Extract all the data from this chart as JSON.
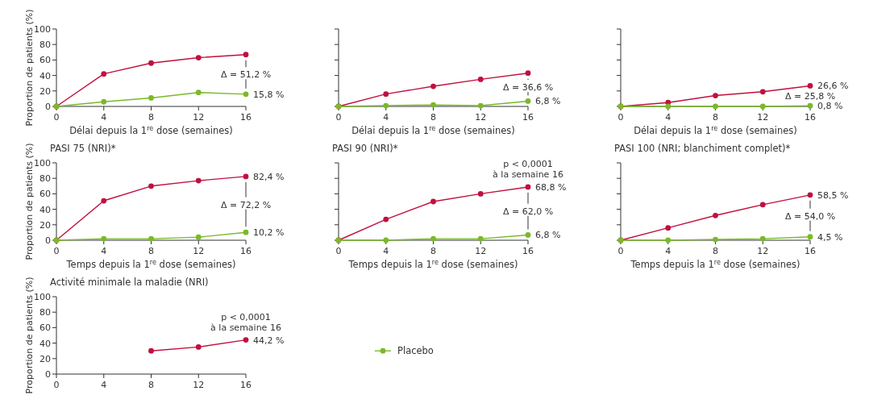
{
  "chart_data": [
    {
      "type": "line",
      "xlabel": "Délai depuis la 1$^{re}$ dose (semaines)",
      "ylabel": "Proportion de patients (%)",
      "x": [
        0,
        4,
        8,
        12,
        16
      ],
      "xlim": [
        0,
        16
      ],
      "xticks": [
        0,
        4,
        8,
        12,
        16
      ],
      "ylim": [
        0,
        100
      ],
      "yticks": [
        0,
        20,
        40,
        60,
        80,
        100
      ],
      "marker": "circle",
      "series": [
        {
          "color": "#c0103f",
          "values": [
            0,
            42,
            56,
            63,
            67.0
          ],
          "value_labels": [
            null,
            null,
            null,
            null,
            null
          ]
        },
        {
          "color": "#7ab929",
          "values": [
            0,
            6,
            11,
            18,
            15.8
          ],
          "value_labels": [
            null,
            null,
            null,
            null,
            "15,8 %"
          ]
        }
      ],
      "annotations": [
        "Δ = 51,2 %"
      ]
    },
    {
      "type": "line",
      "xlabel": "Délai depuis la 1$^{re}$ dose (semaines)",
      "x": [
        0,
        4,
        8,
        12,
        16
      ],
      "xlim": [
        0,
        16
      ],
      "xticks": [
        0,
        4,
        8,
        12,
        16
      ],
      "ylim": [
        0,
        100
      ],
      "yticks": [
        0,
        20,
        40,
        60,
        80,
        100
      ],
      "tick_labels": "x",
      "marker": "circle",
      "series": [
        {
          "color": "#c0103f",
          "values": [
            0,
            16,
            26,
            35,
            43
          ],
          "value_labels": [
            null,
            null,
            null,
            null,
            null
          ]
        },
        {
          "color": "#7ab929",
          "values": [
            0,
            1,
            2,
            1,
            6.8
          ],
          "value_labels": [
            null,
            null,
            null,
            null,
            "6,8 %"
          ]
        }
      ],
      "annotations": [
        "Δ = 36,6 %"
      ]
    },
    {
      "type": "line",
      "xlabel": "Délai depuis la 1$^{re}$ dose (semaines)",
      "x": [
        0,
        4,
        8,
        12,
        16
      ],
      "xlim": [
        0,
        16
      ],
      "xticks": [
        0,
        4,
        8,
        12,
        16
      ],
      "ylim": [
        0,
        100
      ],
      "yticks": [
        0,
        20,
        40,
        60,
        80,
        100
      ],
      "tick_labels": "x",
      "marker": "circle",
      "series": [
        {
          "color": "#c0103f",
          "values": [
            0,
            5,
            14,
            19,
            26.6
          ],
          "value_labels": [
            null,
            null,
            null,
            null,
            "26,6 %"
          ]
        },
        {
          "color": "#7ab929",
          "values": [
            0,
            0,
            0,
            0,
            0.8
          ],
          "value_labels": [
            null,
            null,
            null,
            null,
            "0,8 %"
          ]
        }
      ],
      "annotations": [
        "Δ = 25,8 %"
      ]
    },
    {
      "type": "line",
      "title": "PASI 75 (NRI)*",
      "xlabel": "Temps depuis la 1$^{re}$ dose (semaines)",
      "ylabel": "Proportion de patients (%)",
      "x": [
        0,
        4,
        8,
        12,
        16
      ],
      "xlim": [
        0,
        16
      ],
      "xticks": [
        0,
        4,
        8,
        12,
        16
      ],
      "ylim": [
        0,
        100
      ],
      "yticks": [
        0,
        20,
        40,
        60,
        80,
        100
      ],
      "marker": "circle",
      "series": [
        {
          "color": "#c0103f",
          "values": [
            0,
            51,
            70,
            77,
            82.4
          ],
          "value_labels": [
            null,
            null,
            null,
            null,
            "82,4 %"
          ]
        },
        {
          "color": "#7ab929",
          "values": [
            0,
            2,
            2,
            4,
            10.2
          ],
          "value_labels": [
            null,
            null,
            null,
            null,
            "10,2 %"
          ]
        }
      ],
      "annotations": [
        "Δ = 72,2 %"
      ]
    },
    {
      "type": "line",
      "title": "PASI 90 (NRI)*",
      "xlabel": "Temps depuis la 1$^{re}$ dose (semaines)",
      "x": [
        0,
        4,
        8,
        12,
        16
      ],
      "xlim": [
        0,
        16
      ],
      "xticks": [
        0,
        4,
        8,
        12,
        16
      ],
      "ylim": [
        0,
        100
      ],
      "yticks": [
        0,
        20,
        40,
        60,
        80,
        100
      ],
      "tick_labels": "x",
      "marker": "circle",
      "series": [
        {
          "color": "#c0103f",
          "values": [
            0,
            27,
            50,
            60,
            68.8
          ],
          "value_labels": [
            null,
            null,
            null,
            null,
            "68,8 %"
          ]
        },
        {
          "color": "#7ab929",
          "values": [
            0,
            0,
            2,
            2,
            6.8
          ],
          "value_labels": [
            null,
            null,
            null,
            null,
            "6,8 %"
          ]
        }
      ],
      "annotations": [
        "p < 0,0001",
        "à la semaine 16",
        "Δ = 62,0 %"
      ]
    },
    {
      "type": "line",
      "title": "PASI 100 (NRI; blanchiment complet)*",
      "xlabel": "Temps depuis la 1$^{re}$ dose (semaines)",
      "x": [
        0,
        4,
        8,
        12,
        16
      ],
      "xlim": [
        0,
        16
      ],
      "xticks": [
        0,
        4,
        8,
        12,
        16
      ],
      "ylim": [
        0,
        100
      ],
      "yticks": [
        0,
        20,
        40,
        60,
        80,
        100
      ],
      "tick_labels": "x",
      "marker": "circle",
      "series": [
        {
          "color": "#c0103f",
          "values": [
            0,
            16,
            32,
            46,
            58.5
          ],
          "value_labels": [
            null,
            null,
            null,
            null,
            "58,5 %"
          ]
        },
        {
          "color": "#7ab929",
          "values": [
            0,
            0,
            1,
            2,
            4.5
          ],
          "value_labels": [
            null,
            null,
            null,
            null,
            "4,5 %"
          ]
        }
      ],
      "annotations": [
        "Δ = 54,0 %"
      ]
    },
    {
      "type": "line",
      "title": "Activité minimale la maladie (NRI)",
      "ylabel": "Proportion de patients (%)",
      "xlim": [
        0,
        16
      ],
      "xticks": [
        0,
        4,
        8,
        12,
        16
      ],
      "ylim": [
        0,
        100
      ],
      "yticks": [
        0,
        20,
        40,
        60,
        80,
        100
      ],
      "marker": "circle",
      "legend": "right",
      "series": [
        {
          "color": "#c0103f",
          "x": [
            8,
            12,
            16
          ],
          "values": [
            30,
            35,
            44.2
          ],
          "value_labels": [
            null,
            null,
            "44,2 %"
          ]
        },
        {
          "name": "Placebo",
          "color": "#7ab929"
        }
      ],
      "annotations": [
        "p < 0,0001",
        "à la semaine 16"
      ]
    }
  ]
}
